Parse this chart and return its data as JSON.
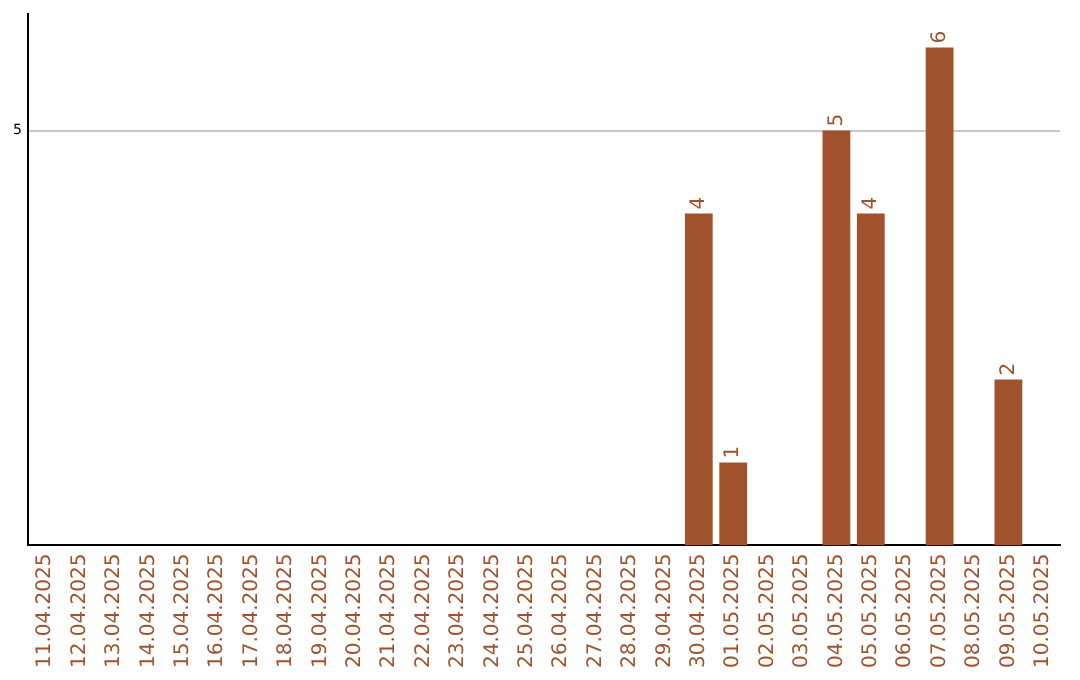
{
  "chart_data": {
    "type": "bar",
    "categories": [
      "11.04.2025",
      "12.04.2025",
      "13.04.2025",
      "14.04.2025",
      "15.04.2025",
      "16.04.2025",
      "17.04.2025",
      "18.04.2025",
      "19.04.2025",
      "20.04.2025",
      "21.04.2025",
      "22.04.2025",
      "23.04.2025",
      "24.04.2025",
      "25.04.2025",
      "26.04.2025",
      "27.04.2025",
      "28.04.2025",
      "29.04.2025",
      "30.04.2025",
      "01.05.2025",
      "02.05.2025",
      "03.05.2025",
      "04.05.2025",
      "05.05.2025",
      "06.05.2025",
      "07.05.2025",
      "08.05.2025",
      "09.05.2025",
      "10.05.2025"
    ],
    "values": [
      null,
      null,
      null,
      null,
      null,
      null,
      null,
      null,
      null,
      null,
      null,
      null,
      null,
      null,
      null,
      null,
      null,
      null,
      null,
      4,
      1,
      null,
      null,
      5,
      4,
      null,
      6,
      null,
      2,
      null
    ],
    "color": "#a0522d",
    "ylim": [
      0,
      6.4
    ],
    "yticks": [
      5
    ],
    "grid": "y",
    "data_labels": true,
    "legend": false
  }
}
